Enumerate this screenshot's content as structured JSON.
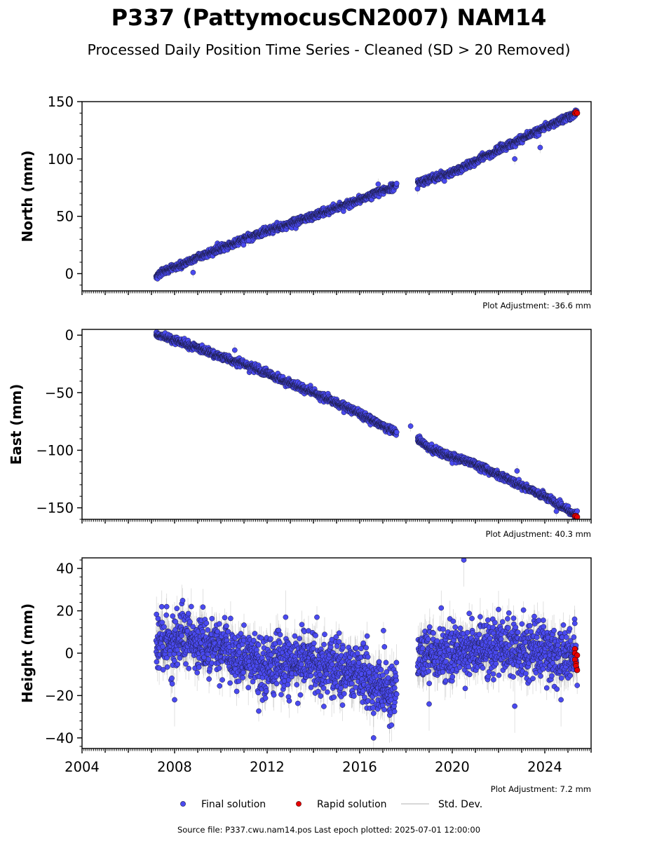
{
  "title": "P337 (PattymocusCN2007) NAM14",
  "subtitle": "Processed Daily Position Time Series - Cleaned (SD > 20 Removed)",
  "footer": "Source file: P337.cwu.nam14.pos  Last epoch plotted: 2025-07-01 12:00:00",
  "legend": {
    "final_label": "Final solution",
    "rapid_label": "Rapid solution",
    "std_label": "Std. Dev."
  },
  "colors": {
    "final": "#4a4af0",
    "final_edge": "#1a1a40",
    "rapid": "#e80000",
    "std": "#555555"
  },
  "chart_data": [
    {
      "type": "scatter",
      "name": "north",
      "ylabel": "North (mm)",
      "xlim": [
        2004.0,
        2026.0
      ],
      "ylim": [
        -15,
        150
      ],
      "yticks": [
        0,
        50,
        100,
        150
      ],
      "ytick_labels": [
        "0",
        "50",
        "100",
        "150"
      ],
      "xticks": [],
      "xtick_labels": [],
      "adjustment": "Plot Adjustment: -36.6 mm",
      "gap": [
        2017.6,
        2018.5
      ],
      "model": {
        "type": "piecewise",
        "points": [
          [
            2007.2,
            -1
          ],
          [
            2011.0,
            30
          ],
          [
            2015.0,
            57
          ],
          [
            2017.6,
            77
          ],
          [
            2018.5,
            79
          ],
          [
            2020.0,
            88
          ],
          [
            2022.0,
            108
          ],
          [
            2024.0,
            127
          ],
          [
            2025.4,
            140
          ]
        ]
      },
      "scatter_sd": 1.6,
      "std_range": [
        1.5,
        3.5
      ],
      "outliers": [
        [
          2008.8,
          1
        ],
        [
          2011.2,
          29
        ],
        [
          2016.8,
          78
        ],
        [
          2018.5,
          74
        ],
        [
          2022.7,
          100
        ],
        [
          2023.8,
          110
        ]
      ],
      "rapid": {
        "x": [
          2025.3,
          2025.35,
          2025.4
        ],
        "y": [
          140,
          141,
          140
        ]
      }
    },
    {
      "type": "scatter",
      "name": "east",
      "ylabel": "East (mm)",
      "xlim": [
        2004.0,
        2026.0
      ],
      "ylim": [
        -160,
        5
      ],
      "yticks": [
        0,
        -50,
        -100,
        -150
      ],
      "ytick_labels": [
        "0",
        "−50",
        "−100",
        "−150"
      ],
      "xticks": [],
      "xtick_labels": [],
      "adjustment": "Plot Adjustment: 40.3 mm",
      "gap": [
        2017.6,
        2018.5
      ],
      "model": {
        "type": "piecewise",
        "points": [
          [
            2007.2,
            1
          ],
          [
            2011.0,
            -25
          ],
          [
            2014.0,
            -50
          ],
          [
            2016.0,
            -68
          ],
          [
            2017.6,
            -85
          ],
          [
            2018.5,
            -90
          ],
          [
            2019.0,
            -99
          ],
          [
            2021.0,
            -112
          ],
          [
            2024.0,
            -140
          ],
          [
            2025.4,
            -157
          ]
        ]
      },
      "scatter_sd": 1.6,
      "std_range": [
        1.5,
        3.5
      ],
      "outliers": [
        [
          2010.6,
          -13
        ],
        [
          2018.2,
          -79
        ],
        [
          2022.8,
          -118
        ],
        [
          2024.5,
          -153
        ]
      ],
      "rapid": {
        "x": [
          2025.3,
          2025.35,
          2025.4
        ],
        "y": [
          -157,
          -157,
          -158
        ]
      }
    },
    {
      "type": "scatter",
      "name": "height",
      "ylabel": "Height (mm)",
      "xlim": [
        2004.0,
        2026.0
      ],
      "ylim": [
        -45,
        45
      ],
      "yticks": [
        40,
        20,
        0,
        -20,
        -40
      ],
      "ytick_labels": [
        "40",
        "20",
        "0",
        "−20",
        "−40"
      ],
      "xticks": [
        2004,
        2008,
        2012,
        2016,
        2020,
        2024
      ],
      "xtick_labels": [
        "2004",
        "2008",
        "2012",
        "2016",
        "2020",
        "2024"
      ],
      "adjustment": "Plot Adjustment: 7.2 mm",
      "gap": [
        2017.6,
        2018.5
      ],
      "model": {
        "type": "piecewise",
        "points": [
          [
            2007.2,
            4
          ],
          [
            2008.5,
            7
          ],
          [
            2010.0,
            2
          ],
          [
            2012.0,
            -6
          ],
          [
            2014.0,
            -4
          ],
          [
            2016.0,
            -9
          ],
          [
            2017.3,
            -20
          ],
          [
            2017.6,
            -12
          ],
          [
            2018.5,
            0
          ],
          [
            2020.0,
            0
          ],
          [
            2022.0,
            3
          ],
          [
            2024.0,
            0
          ],
          [
            2025.4,
            -2
          ]
        ]
      },
      "scatter_sd": 6.5,
      "std_range": [
        4.0,
        9.0
      ],
      "outliers": [
        [
          2008.0,
          -22
        ],
        [
          2012.8,
          17
        ],
        [
          2016.6,
          -40
        ],
        [
          2020.5,
          44
        ],
        [
          2019.0,
          -24
        ],
        [
          2022.7,
          -25
        ],
        [
          2024.7,
          -22
        ]
      ],
      "rapid": {
        "x": [
          2025.3,
          2025.3,
          2025.3,
          2025.35,
          2025.35,
          2025.4,
          2025.4
        ],
        "y": [
          2,
          0,
          -3,
          -5,
          -6,
          -1,
          -8
        ]
      }
    }
  ]
}
